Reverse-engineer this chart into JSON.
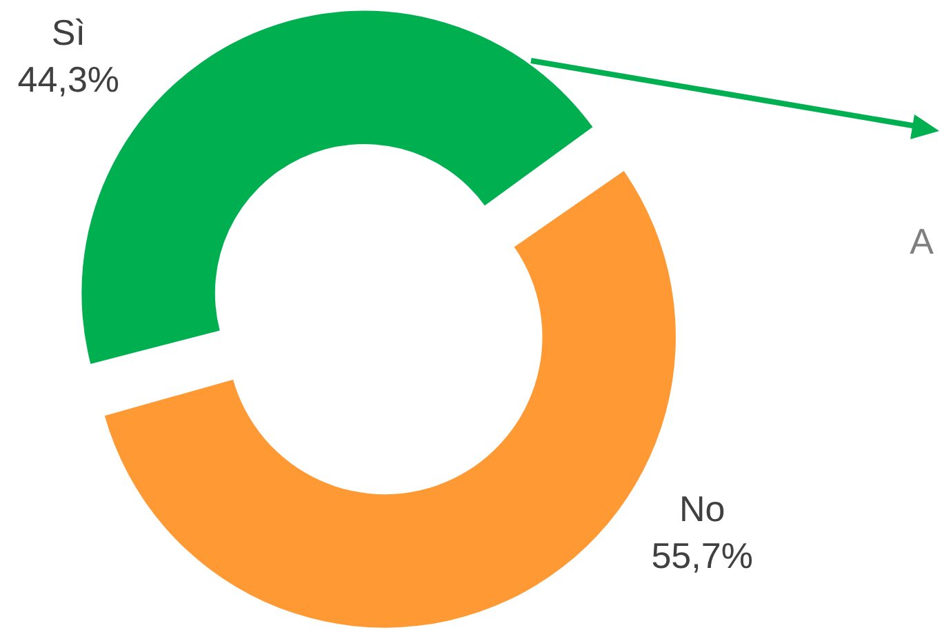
{
  "chart_data": {
    "type": "donut",
    "categories": [
      "Sì",
      "No"
    ],
    "values": [
      44.3,
      55.7
    ],
    "colors": [
      "#00b050",
      "#ff9933"
    ],
    "value_labels": [
      "44,3%",
      "55,7%"
    ],
    "annotations": [
      "A"
    ],
    "legend": false
  }
}
